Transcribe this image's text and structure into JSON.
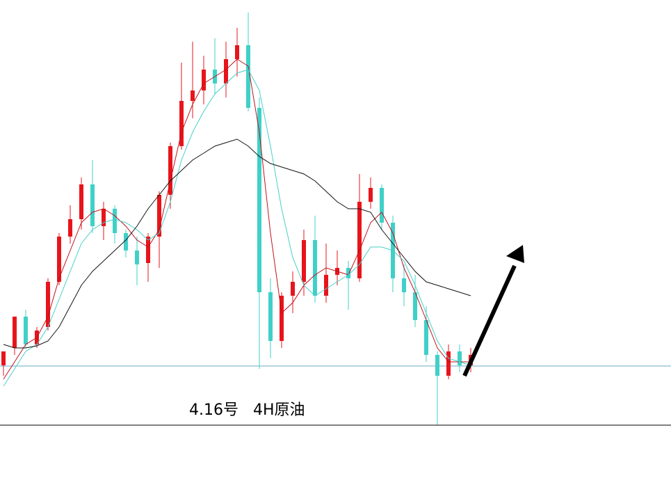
{
  "chart_data": {
    "type": "candlestick",
    "title": "4.16号   4H原油",
    "ylim": [
      0,
      697
    ],
    "up_color": "#e8141b",
    "down_color": "#3fd0c8",
    "ohlc": [
      [
        172,
        192,
        157,
        192
      ],
      [
        197,
        242,
        187,
        242
      ],
      [
        242,
        252,
        197,
        202
      ],
      [
        202,
        227,
        197,
        222
      ],
      [
        227,
        297,
        222,
        292
      ],
      [
        292,
        362,
        287,
        357
      ],
      [
        357,
        402,
        347,
        382
      ],
      [
        382,
        442,
        367,
        432
      ],
      [
        432,
        467,
        362,
        372
      ],
      [
        372,
        407,
        352,
        397
      ],
      [
        397,
        402,
        347,
        362
      ],
      [
        362,
        367,
        327,
        337
      ],
      [
        337,
        357,
        287,
        317
      ],
      [
        319,
        362,
        292,
        357
      ],
      [
        357,
        422,
        312,
        417
      ],
      [
        417,
        492,
        397,
        487
      ],
      [
        487,
        607,
        482,
        552
      ],
      [
        552,
        637,
        527,
        567
      ],
      [
        567,
        617,
        547,
        597
      ],
      [
        597,
        642,
        562,
        577
      ],
      [
        577,
        637,
        557,
        612
      ],
      [
        612,
        657,
        587,
        632
      ],
      [
        632,
        679,
        537,
        542
      ],
      [
        542,
        557,
        167,
        277
      ],
      [
        277,
        297,
        182,
        207
      ],
      [
        207,
        277,
        197,
        272
      ],
      [
        272,
        307,
        247,
        292
      ],
      [
        292,
        367,
        272,
        352
      ],
      [
        352,
        387,
        262,
        272
      ],
      [
        272,
        347,
        262,
        302
      ],
      [
        302,
        337,
        287,
        312
      ],
      [
        312,
        322,
        252,
        297
      ],
      [
        297,
        447,
        292,
        407
      ],
      [
        407,
        442,
        397,
        427
      ],
      [
        427,
        432,
        367,
        377
      ],
      [
        377,
        387,
        277,
        297
      ],
      [
        297,
        317,
        257,
        277
      ],
      [
        277,
        302,
        227,
        237
      ],
      [
        237,
        257,
        177,
        187
      ],
      [
        187,
        192,
        87,
        157
      ],
      [
        157,
        202,
        152,
        192
      ],
      [
        192,
        202,
        162,
        172
      ],
      [
        172,
        197,
        162,
        187
      ]
    ],
    "series": [
      {
        "color": "#c0111a",
        "values": [
          152,
          177,
          202,
          212,
          242,
          297,
          337,
          377,
          392,
          397,
          387,
          372,
          352,
          342,
          367,
          437,
          507,
          547,
          577,
          587,
          597,
          612,
          602,
          507,
          362,
          247,
          262,
          287,
          302,
          312,
          307,
          302,
          337,
          377,
          392,
          362,
          312,
          277,
          237,
          197,
          177,
          177,
          177
        ]
      },
      {
        "color": "#46cfc7",
        "values": [
          142,
          167,
          192,
          202,
          227,
          267,
          307,
          347,
          367,
          377,
          382,
          377,
          367,
          352,
          362,
          407,
          467,
          507,
          537,
          562,
          577,
          592,
          597,
          567,
          487,
          397,
          327,
          287,
          272,
          282,
          292,
          302,
          317,
          342,
          342,
          337,
          322,
          287,
          247,
          207,
          182,
          177,
          172
        ]
      },
      {
        "color": "#111111",
        "values": [
          202,
          197,
          197,
          200,
          207,
          227,
          257,
          287,
          307,
          322,
          337,
          352,
          372,
          397,
          417,
          437,
          452,
          467,
          477,
          487,
          492,
          497,
          487,
          472,
          462,
          457,
          452,
          447,
          437,
          422,
          407,
          397,
          397,
          392,
          367,
          347,
          327,
          307,
          292,
          287,
          282,
          277,
          272
        ]
      }
    ],
    "reference_line": 171,
    "reference_color": "#6aa8c4"
  }
}
